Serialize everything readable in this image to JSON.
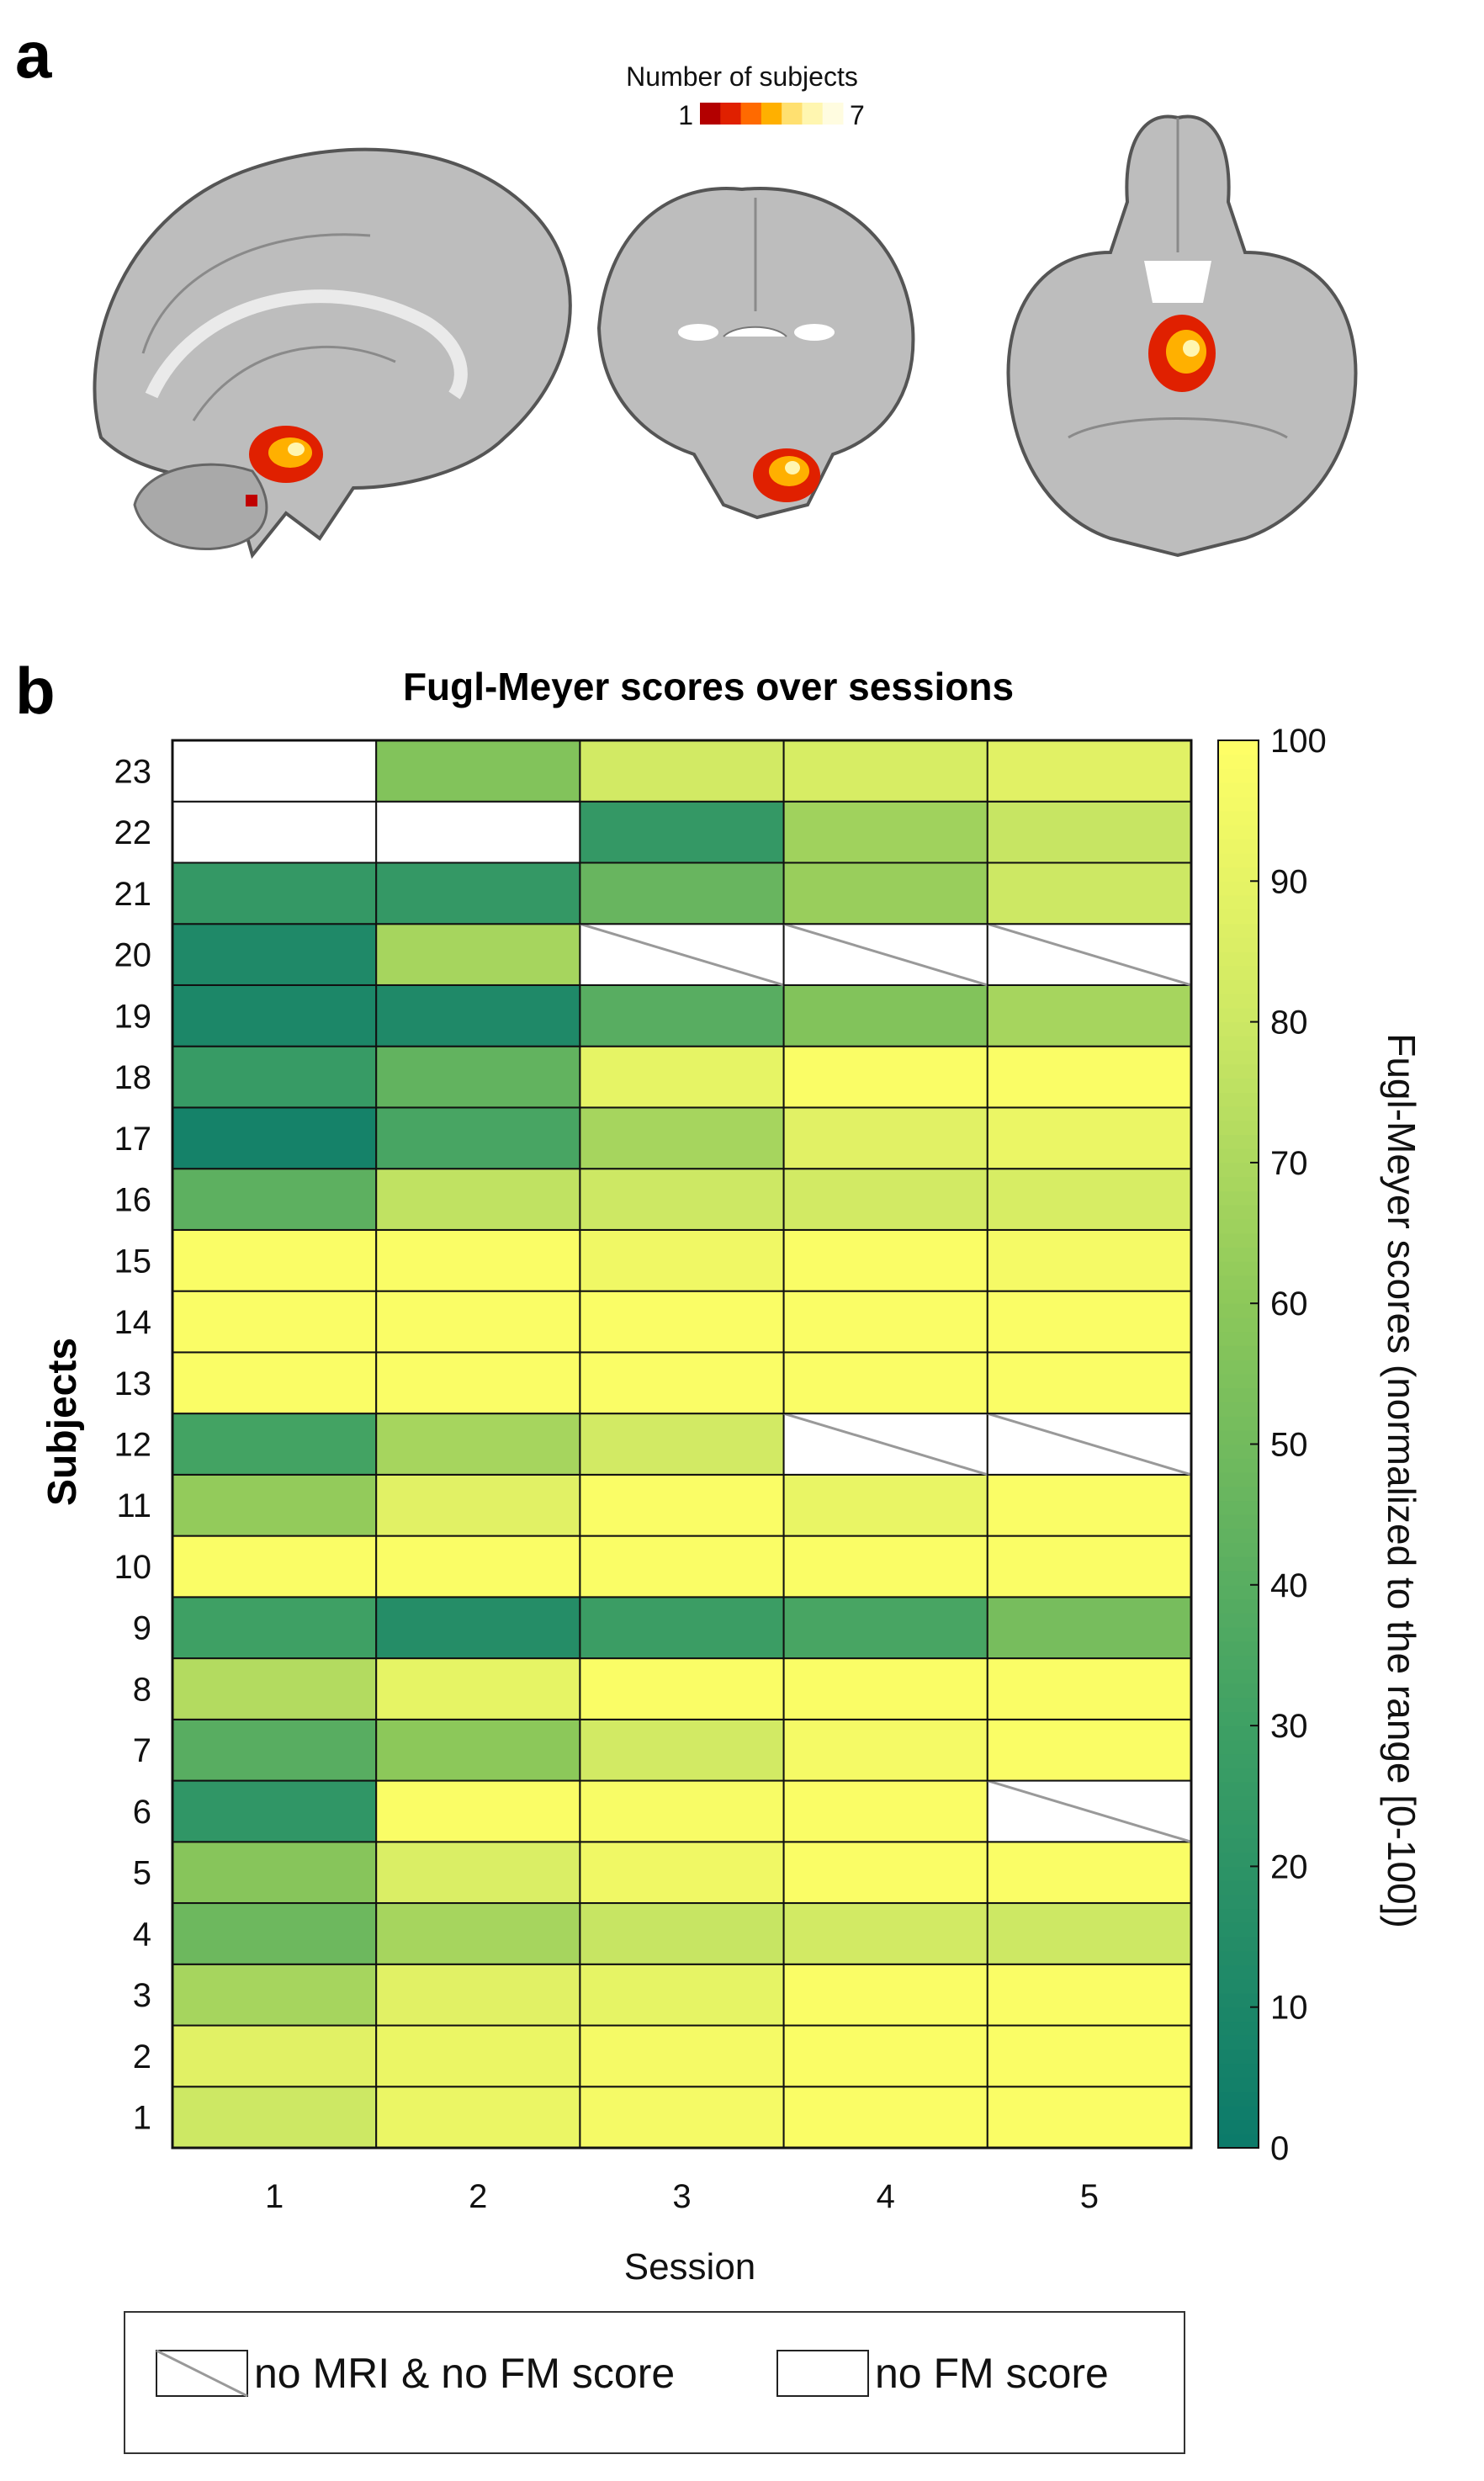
{
  "panel_a": {
    "letter": "a",
    "colorbar": {
      "title": "Number of subjects",
      "min_label": "1",
      "max_label": "7",
      "colors": [
        "#b30000",
        "#e02000",
        "#ff6a00",
        "#ffb000",
        "#ffe070",
        "#fff6b0",
        "#fffce0"
      ]
    },
    "views": [
      "sagittal-brain-slice",
      "coronal-brain-slice",
      "axial-brain-slice"
    ]
  },
  "panel_b": {
    "letter": "b"
  },
  "chart_data": {
    "type": "heatmap",
    "title": "Fugl-Meyer scores over sessions",
    "xlabel": "Session",
    "ylabel": "Subjects",
    "x": [
      1,
      2,
      3,
      4,
      5
    ],
    "y": [
      1,
      2,
      3,
      4,
      5,
      6,
      7,
      8,
      9,
      10,
      11,
      12,
      13,
      14,
      15,
      16,
      17,
      18,
      19,
      20,
      21,
      22,
      23
    ],
    "values_note_scale": [
      0,
      100
    ],
    "values": [
      [
        80,
        92,
        96,
        98,
        98
      ],
      [
        88,
        92,
        96,
        98,
        98
      ],
      [
        68,
        88,
        90,
        98,
        98
      ],
      [
        48,
        68,
        78,
        82,
        80
      ],
      [
        58,
        85,
        94,
        98,
        98
      ],
      [
        22,
        98,
        97,
        98,
        null
      ],
      [
        40,
        60,
        82,
        96,
        98
      ],
      [
        72,
        90,
        98,
        98,
        98
      ],
      [
        30,
        15,
        28,
        34,
        52
      ],
      [
        98,
        98,
        98,
        98,
        98
      ],
      [
        62,
        88,
        98,
        91,
        98
      ],
      [
        32,
        68,
        82,
        null,
        null
      ],
      [
        98,
        98,
        98,
        98,
        98
      ],
      [
        98,
        98,
        98,
        98,
        98
      ],
      [
        98,
        98,
        94,
        98,
        96
      ],
      [
        42,
        76,
        80,
        82,
        84
      ],
      [
        6,
        34,
        68,
        88,
        92
      ],
      [
        26,
        44,
        90,
        98,
        98
      ],
      [
        10,
        12,
        40,
        56,
        68
      ],
      [
        12,
        68,
        null,
        null,
        null
      ],
      [
        24,
        24,
        46,
        64,
        80
      ],
      [
        null,
        null,
        24,
        66,
        78
      ],
      [
        null,
        56,
        82,
        84,
        88
      ]
    ],
    "missing": {
      "no_mri_no_fm": [
        [
          6,
          5
        ],
        [
          12,
          4
        ],
        [
          12,
          5
        ],
        [
          20,
          3
        ],
        [
          20,
          4
        ],
        [
          20,
          5
        ]
      ],
      "no_fm": [
        [
          22,
          1
        ],
        [
          22,
          2
        ],
        [
          23,
          1
        ]
      ]
    },
    "colorbar": {
      "label": "Fugl-Meyer scores (normalized to the range [0-100])",
      "ticks": [
        0,
        10,
        20,
        30,
        40,
        50,
        60,
        70,
        80,
        90,
        100
      ],
      "low_color": "#0b7a6a",
      "high_color": "#ffff66"
    },
    "legend": [
      {
        "key": "no_mri_no_fm",
        "label": "no MRI & no FM score"
      },
      {
        "key": "no_fm",
        "label": "no FM score"
      }
    ]
  }
}
